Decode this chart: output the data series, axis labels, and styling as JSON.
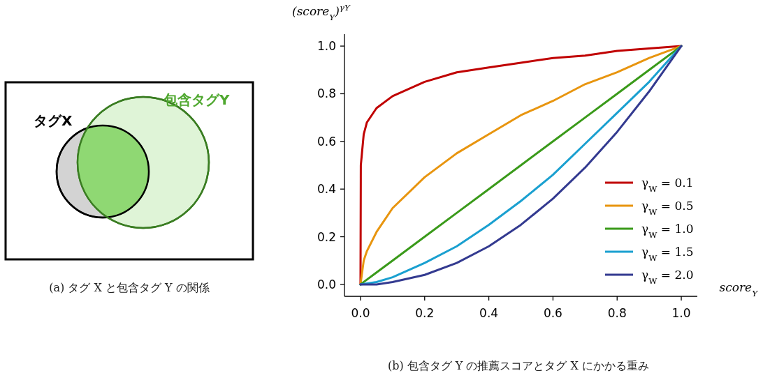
{
  "chart_data": {
    "type": "line",
    "xlabel": "score$_{Y}$",
    "ylabel": "(score$_{Y}$)$^{γY}$",
    "annotations": [
      "タグX",
      "包含タグY",
      "(a) タグ X と包含タグ Y の関係",
      "(b) 包含タグ Y の推薦スコアとタグ X にかかる重み"
    ],
    "x": [
      0,
      0.05,
      0.1,
      0.2,
      0.3,
      0.4,
      0.5,
      0.6,
      0.7,
      0.8,
      0.9,
      1.0
    ],
    "series": [
      {
        "name": "γ$_{W}$ = 0.1",
        "color": "#c00000",
        "x": [
          0,
          0.001,
          0.01,
          0.02,
          0.05,
          0.1,
          0.2,
          0.3,
          0.4,
          0.5,
          0.6,
          0.7,
          0.8,
          0.9,
          1.0
        ],
        "values": [
          0,
          0.5,
          0.63,
          0.68,
          0.74,
          0.79,
          0.85,
          0.89,
          0.91,
          0.93,
          0.95,
          0.96,
          0.98,
          0.99,
          1.0
        ]
      },
      {
        "name": "γ$_{W}$ = 0.5",
        "color": "#e8950f",
        "x": [
          0,
          0.01,
          0.02,
          0.05,
          0.1,
          0.2,
          0.3,
          0.4,
          0.5,
          0.6,
          0.7,
          0.8,
          0.9,
          1.0
        ],
        "values": [
          0,
          0.1,
          0.14,
          0.22,
          0.32,
          0.45,
          0.55,
          0.63,
          0.71,
          0.77,
          0.84,
          0.89,
          0.95,
          1.0
        ]
      },
      {
        "name": "γ$_{W}$ = 1.0",
        "color": "#3a9a1a",
        "values": [
          0,
          0.05,
          0.1,
          0.2,
          0.3,
          0.4,
          0.5,
          0.6,
          0.7,
          0.8,
          0.9,
          1.0
        ]
      },
      {
        "name": "γ$_{W}$ = 1.5",
        "color": "#1aa0d0",
        "values": [
          0,
          0.01,
          0.03,
          0.09,
          0.16,
          0.25,
          0.35,
          0.46,
          0.59,
          0.72,
          0.85,
          1.0
        ]
      },
      {
        "name": "γ$_{W}$ = 2.0",
        "color": "#333a90",
        "values": [
          0,
          0.0,
          0.01,
          0.04,
          0.09,
          0.16,
          0.25,
          0.36,
          0.49,
          0.64,
          0.81,
          1.0
        ]
      }
    ],
    "xlim": [
      -0.05,
      1.05
    ],
    "ylim": [
      -0.05,
      1.05
    ],
    "xticks": [
      {
        "value": 0,
        "label": "0.0"
      },
      0.2,
      0.4,
      0.6,
      0.8,
      {
        "value": 1,
        "label": "1.0"
      }
    ],
    "yticks": [
      {
        "value": 0,
        "label": "0.0"
      },
      0.2,
      0.4,
      0.6,
      0.8,
      {
        "value": 1,
        "label": "1.0"
      }
    ],
    "grid": false,
    "legend": "bottom right",
    "line_style": "solid",
    "marker": "none"
  }
}
